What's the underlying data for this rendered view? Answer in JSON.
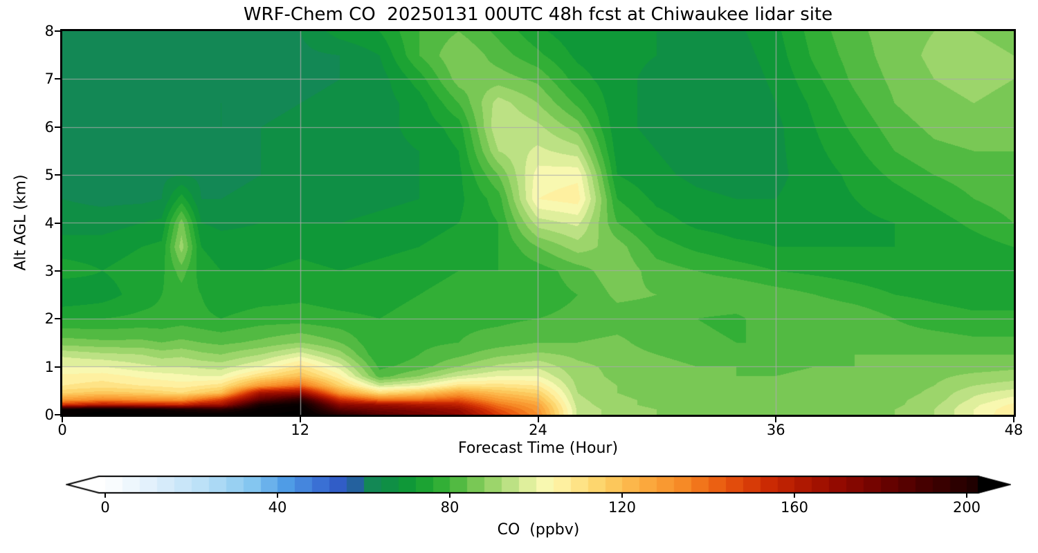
{
  "title": "WRF-Chem CO  20250131 00UTC 48h fcst at Chiwaukee lidar site",
  "chart_data": {
    "type": "heatmap",
    "title": "WRF-Chem CO  20250131 00UTC 48h fcst at Chiwaukee lidar site",
    "xlabel": "Forecast Time (Hour)",
    "ylabel": "Alt AGL (km)",
    "colorbar_label": "CO  (ppbv)",
    "units": "ppbv",
    "xlim": [
      0,
      48
    ],
    "ylim": [
      0,
      8
    ],
    "x_ticks": [
      0,
      12,
      24,
      36,
      48
    ],
    "y_ticks": [
      0,
      1,
      2,
      3,
      4,
      5,
      6,
      7,
      8
    ],
    "colorbar_ticks": [
      0,
      40,
      80,
      120,
      160,
      200
    ],
    "colorbar_extend": "both",
    "contour_interval": 4,
    "grid": true,
    "grid_color": "#aaaaaa",
    "x": [
      0,
      2,
      4,
      5,
      6,
      7,
      8,
      10,
      12,
      14,
      16,
      18,
      20,
      22,
      24,
      26,
      28,
      30,
      32,
      34,
      36,
      38,
      40,
      42,
      44,
      46,
      48
    ],
    "y": [
      0,
      0.1,
      0.2,
      0.3,
      0.45,
      0.6,
      0.8,
      1.0,
      1.25,
      1.5,
      2.0,
      2.5,
      3.0,
      3.5,
      4.0,
      4.5,
      5.0,
      5.5,
      6.0,
      6.5,
      7.0,
      7.5,
      8.0
    ],
    "values": [
      [
        215,
        218,
        216,
        214,
        213,
        212,
        212,
        215,
        218,
        198,
        185,
        178,
        172,
        150,
        132,
        95,
        90,
        88,
        86,
        85,
        86,
        88,
        86,
        88,
        92,
        100,
        108
      ],
      [
        212,
        215,
        210,
        208,
        205,
        202,
        200,
        213,
        216,
        185,
        178,
        174,
        168,
        145,
        130,
        95,
        90,
        88,
        86,
        85,
        86,
        88,
        86,
        88,
        92,
        100,
        107
      ],
      [
        152,
        160,
        158,
        156,
        155,
        164,
        165,
        205,
        212,
        172,
        168,
        162,
        158,
        138,
        127,
        94,
        89,
        87,
        86,
        85,
        85,
        87,
        86,
        87,
        91,
        99,
        105
      ],
      [
        130,
        135,
        133,
        133,
        132,
        141,
        150,
        185,
        200,
        155,
        140,
        140,
        145,
        130,
        122,
        93,
        89,
        87,
        85,
        85,
        85,
        87,
        85,
        87,
        90,
        97,
        102
      ],
      [
        115,
        118,
        116,
        114,
        112,
        116,
        120,
        165,
        170,
        130,
        112,
        118,
        128,
        120,
        115,
        92,
        88,
        86,
        85,
        84,
        85,
        86,
        85,
        86,
        89,
        95,
        98
      ],
      [
        108,
        110,
        108,
        107,
        106,
        108,
        110,
        130,
        140,
        115,
        96,
        100,
        110,
        110,
        108,
        91,
        88,
        86,
        85,
        84,
        84,
        86,
        85,
        86,
        88,
        92,
        94
      ],
      [
        105,
        106,
        103,
        102,
        101,
        100,
        100,
        112,
        120,
        105,
        82,
        88,
        96,
        100,
        100,
        90,
        87,
        85,
        84,
        84,
        84,
        85,
        85,
        86,
        87,
        89,
        90
      ],
      [
        100,
        100,
        97,
        96,
        96,
        95,
        94,
        100,
        110,
        98,
        79,
        82,
        88,
        93,
        95,
        89,
        87,
        85,
        84,
        84,
        83,
        84,
        84,
        85,
        86,
        86,
        87
      ],
      [
        95,
        93,
        92,
        90,
        91,
        89,
        88,
        92,
        98,
        90,
        76,
        80,
        83,
        87,
        89,
        87,
        86,
        84,
        83,
        83,
        82,
        83,
        84,
        84,
        84,
        84,
        84
      ],
      [
        86,
        85,
        85,
        84,
        85,
        84,
        83,
        85,
        88,
        84,
        76,
        79,
        80,
        82,
        84,
        84,
        85,
        82,
        81,
        80,
        80,
        82,
        83,
        82,
        82,
        81,
        81
      ],
      [
        76,
        76,
        77,
        77,
        78,
        77,
        76,
        78,
        78,
        77,
        76,
        78,
        79,
        79,
        80,
        81,
        82,
        82,
        80,
        79,
        83,
        84,
        83,
        80,
        78,
        77,
        77
      ],
      [
        68,
        70,
        74,
        76,
        78,
        76,
        73,
        74,
        75,
        74,
        74,
        76,
        78,
        77,
        78,
        80,
        85,
        84,
        84,
        84,
        82,
        80,
        78,
        76,
        75,
        74,
        74
      ],
      [
        74,
        72,
        74,
        75,
        82,
        74,
        72,
        72,
        73,
        72,
        73,
        74,
        76,
        76,
        78,
        82,
        87,
        82,
        80,
        78,
        76,
        75,
        74,
        73,
        73,
        73,
        74
      ],
      [
        70,
        70,
        72,
        73,
        90,
        72,
        70,
        70,
        71,
        70,
        71,
        72,
        74,
        76,
        84,
        90,
        86,
        78,
        75,
        73,
        72,
        72,
        72,
        72,
        73,
        74,
        76
      ],
      [
        66,
        66,
        68,
        69,
        86,
        68,
        67,
        68,
        68,
        68,
        69,
        70,
        72,
        76,
        94,
        97,
        80,
        74,
        71,
        70,
        70,
        71,
        71,
        72,
        74,
        77,
        80
      ],
      [
        64,
        63,
        63,
        64,
        74,
        64,
        64,
        65,
        66,
        66,
        67,
        68,
        71,
        78,
        104,
        106,
        76,
        71,
        69,
        68,
        68,
        70,
        72,
        74,
        77,
        80,
        82
      ],
      [
        63,
        63,
        63,
        63,
        64,
        63,
        63,
        64,
        65,
        66,
        67,
        68,
        71,
        84,
        102,
        103,
        72,
        69,
        67,
        66,
        67,
        70,
        73,
        77,
        80,
        82,
        83
      ],
      [
        63,
        63,
        63,
        63,
        63,
        63,
        63,
        64,
        65,
        66,
        67,
        68,
        72,
        92,
        97,
        94,
        70,
        68,
        66,
        65,
        67,
        71,
        75,
        80,
        83,
        84,
        84
      ],
      [
        63,
        63,
        63,
        63,
        63,
        63,
        64,
        64,
        65,
        66,
        67,
        69,
        74,
        96,
        93,
        86,
        69,
        67,
        65,
        64,
        67,
        72,
        77,
        82,
        85,
        86,
        86
      ],
      [
        63,
        63,
        63,
        63,
        63,
        63,
        64,
        63,
        64,
        65,
        66,
        70,
        80,
        94,
        88,
        79,
        69,
        67,
        65,
        64,
        68,
        73,
        79,
        84,
        87,
        88,
        87
      ],
      [
        63,
        63,
        63,
        63,
        63,
        63,
        63,
        63,
        63,
        64,
        66,
        74,
        86,
        86,
        83,
        74,
        69,
        67,
        66,
        65,
        69,
        75,
        81,
        85,
        88,
        89,
        88
      ],
      [
        63,
        63,
        63,
        63,
        63,
        63,
        63,
        63,
        63,
        64,
        68,
        80,
        88,
        82,
        77,
        71,
        69,
        68,
        67,
        66,
        70,
        77,
        82,
        86,
        89,
        90,
        88
      ],
      [
        63,
        63,
        63,
        63,
        63,
        63,
        63,
        63,
        64,
        70,
        72,
        80,
        84,
        79,
        73,
        69,
        69,
        68,
        68,
        67,
        71,
        78,
        83,
        86,
        88,
        88,
        86
      ]
    ],
    "colormap": [
      {
        "v": 0,
        "c": "#ffffff"
      },
      {
        "v": 12,
        "c": "#ddeefb"
      },
      {
        "v": 24,
        "c": "#b5def6"
      },
      {
        "v": 34,
        "c": "#84c6f0"
      },
      {
        "v": 42,
        "c": "#4f9ce6"
      },
      {
        "v": 50,
        "c": "#3a70d4"
      },
      {
        "v": 57,
        "c": "#2b4fbe"
      },
      {
        "v": 60,
        "c": "#17855e"
      },
      {
        "v": 64,
        "c": "#0f8a4c"
      },
      {
        "v": 70,
        "c": "#0f9838"
      },
      {
        "v": 76,
        "c": "#22a930"
      },
      {
        "v": 82,
        "c": "#52ba42"
      },
      {
        "v": 88,
        "c": "#8ccf5f"
      },
      {
        "v": 94,
        "c": "#bce184"
      },
      {
        "v": 99,
        "c": "#e8f2a2"
      },
      {
        "v": 103,
        "c": "#fdfab4"
      },
      {
        "v": 108,
        "c": "#fee992"
      },
      {
        "v": 114,
        "c": "#fdd66e"
      },
      {
        "v": 120,
        "c": "#fcbf52"
      },
      {
        "v": 127,
        "c": "#fba43a"
      },
      {
        "v": 134,
        "c": "#f68a26"
      },
      {
        "v": 140,
        "c": "#ef6a15"
      },
      {
        "v": 147,
        "c": "#e0470a"
      },
      {
        "v": 154,
        "c": "#cb2a03"
      },
      {
        "v": 161,
        "c": "#b31a01"
      },
      {
        "v": 170,
        "c": "#930a00"
      },
      {
        "v": 180,
        "c": "#6d0200"
      },
      {
        "v": 190,
        "c": "#460000"
      },
      {
        "v": 200,
        "c": "#250000"
      },
      {
        "v": 210,
        "c": "#0a0000"
      },
      {
        "v": 218,
        "c": "#000000"
      }
    ]
  }
}
